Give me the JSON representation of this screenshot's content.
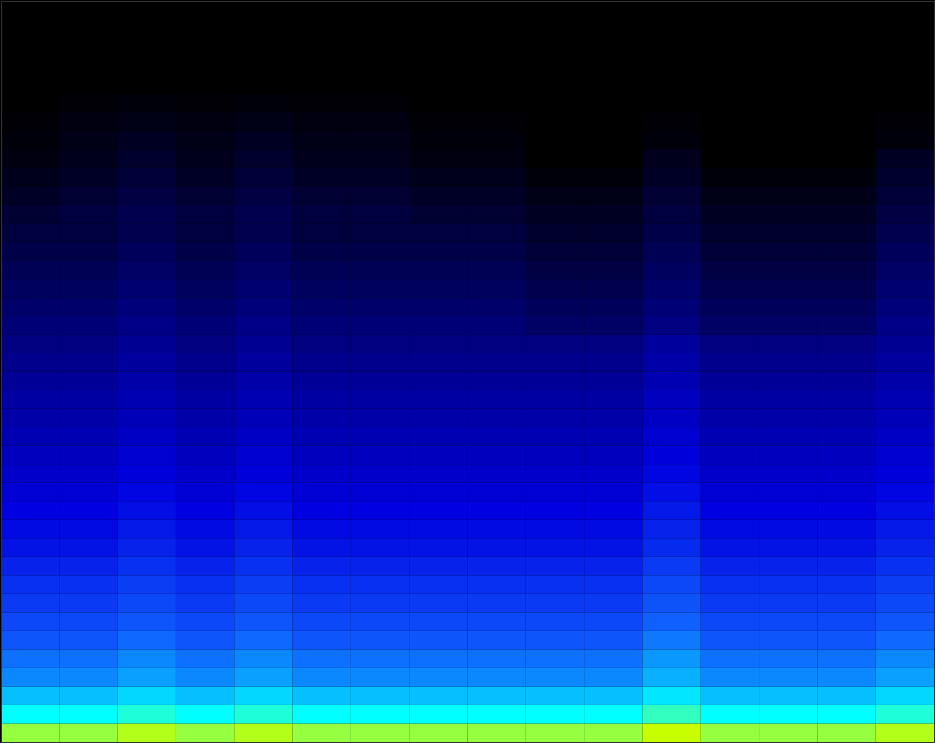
{
  "chart_data": {
    "type": "heatmap",
    "x": [
      0,
      1,
      2,
      3,
      4,
      5,
      6,
      7,
      8,
      9,
      10,
      11,
      12,
      13,
      14,
      15,
      16
    ],
    "y": [
      0,
      2.5,
      5,
      7.5,
      10,
      12.5,
      15,
      17.5,
      20,
      22.5,
      25,
      27.5,
      30,
      32.5,
      35,
      37.5,
      40,
      42.5,
      45,
      47.5,
      50,
      52.5,
      55,
      57.5,
      60,
      62.5,
      65,
      67.5,
      70,
      72.5,
      75,
      77.5,
      80,
      82.5,
      85,
      87.5,
      90,
      92.5,
      95,
      97.5,
      100
    ],
    "xlim": [
      0,
      16
    ],
    "ylim": [
      0,
      100
    ],
    "tick_labels": false,
    "values": [
      [
        95,
        95,
        98,
        95,
        98,
        95,
        95,
        95,
        95,
        95,
        95,
        100,
        95,
        95,
        95,
        98
      ],
      [
        80,
        80,
        83,
        80,
        83,
        80,
        80,
        80,
        80,
        80,
        80,
        85,
        80,
        80,
        80,
        83
      ],
      [
        72,
        72,
        75,
        72,
        75,
        72,
        72,
        72,
        72,
        72,
        72,
        77,
        72,
        72,
        72,
        75
      ],
      [
        65,
        65,
        68,
        65,
        68,
        65,
        65,
        65,
        65,
        65,
        65,
        70,
        65,
        65,
        65,
        68
      ],
      [
        62,
        62,
        65,
        62,
        65,
        62,
        62,
        62,
        62,
        62,
        62,
        67,
        62,
        62,
        62,
        65
      ],
      [
        58,
        58,
        61,
        58,
        61,
        58,
        58,
        58,
        58,
        58,
        58,
        63,
        58,
        58,
        58,
        61
      ],
      [
        55,
        55,
        58,
        55,
        58,
        55,
        55,
        55,
        55,
        55,
        55,
        60,
        55,
        55,
        55,
        58
      ],
      [
        52,
        52,
        55,
        52,
        55,
        52,
        52,
        52,
        52,
        52,
        52,
        57,
        52,
        52,
        52,
        55
      ],
      [
        50,
        50,
        53,
        50,
        53,
        50,
        50,
        50,
        50,
        50,
        50,
        55,
        50,
        50,
        50,
        53
      ],
      [
        47,
        47,
        50,
        47,
        50,
        47,
        47,
        47,
        47,
        47,
        47,
        52,
        47,
        47,
        47,
        50
      ],
      [
        44,
        44,
        47,
        44,
        47,
        44,
        44,
        44,
        44,
        44,
        44,
        49,
        44,
        44,
        44,
        47
      ],
      [
        42,
        42,
        45,
        42,
        45,
        42,
        42,
        42,
        42,
        42,
        42,
        47,
        42,
        42,
        42,
        45
      ],
      [
        40,
        40,
        43,
        40,
        43,
        40,
        40,
        40,
        40,
        40,
        40,
        45,
        40,
        40,
        40,
        43
      ],
      [
        38,
        38,
        41,
        38,
        41,
        38,
        38,
        38,
        38,
        38,
        38,
        43,
        38,
        38,
        38,
        41
      ],
      [
        36,
        36,
        39,
        36,
        39,
        36,
        36,
        36,
        36,
        36,
        36,
        41,
        36,
        36,
        36,
        39
      ],
      [
        34,
        34,
        37,
        34,
        37,
        34,
        34,
        34,
        34,
        34,
        34,
        39,
        34,
        34,
        34,
        37
      ],
      [
        32,
        32,
        35,
        32,
        35,
        32,
        32,
        32,
        32,
        32,
        32,
        37,
        32,
        32,
        32,
        35
      ],
      [
        30,
        30,
        33,
        30,
        33,
        30,
        30,
        30,
        30,
        30,
        30,
        35,
        30,
        30,
        30,
        33
      ],
      [
        29,
        29,
        32,
        29,
        32,
        29,
        29,
        29,
        29,
        29,
        29,
        34,
        29,
        29,
        29,
        32
      ],
      [
        27,
        27,
        30,
        27,
        30,
        27,
        27,
        27,
        27,
        27,
        27,
        32,
        27,
        27,
        27,
        30
      ],
      [
        25,
        25,
        28,
        25,
        28,
        25,
        25,
        25,
        25,
        25,
        25,
        30,
        25,
        25,
        25,
        28
      ],
      [
        23,
        23,
        26,
        23,
        26,
        23,
        23,
        23,
        23,
        23,
        23,
        28,
        23,
        23,
        23,
        26
      ],
      [
        21,
        21,
        24,
        21,
        24,
        21,
        21,
        21,
        21,
        18,
        18,
        23,
        18,
        18,
        18,
        24
      ],
      [
        19,
        19,
        22,
        19,
        22,
        19,
        19,
        19,
        19,
        16,
        16,
        21,
        16,
        16,
        16,
        22
      ],
      [
        17,
        17,
        20,
        17,
        20,
        17,
        17,
        17,
        17,
        14,
        14,
        19,
        14,
        14,
        14,
        20
      ],
      [
        15,
        15,
        18,
        15,
        18,
        15,
        15,
        15,
        15,
        12,
        12,
        17,
        12,
        12,
        12,
        18
      ],
      [
        13,
        13,
        16,
        13,
        16,
        13,
        13,
        13,
        13,
        10,
        10,
        15,
        10,
        10,
        10,
        16
      ],
      [
        11,
        11,
        14,
        11,
        14,
        11,
        11,
        11,
        11,
        8,
        8,
        13,
        8,
        8,
        8,
        14
      ],
      [
        9,
        11,
        14,
        11,
        14,
        11,
        11,
        9,
        9,
        6,
        6,
        11,
        6,
        6,
        6,
        12
      ],
      [
        7,
        9,
        12,
        9,
        12,
        9,
        9,
        7,
        7,
        4,
        4,
        9,
        4,
        4,
        4,
        10
      ],
      [
        5,
        7,
        10,
        7,
        10,
        7,
        7,
        5,
        5,
        2,
        2,
        7,
        2,
        2,
        2,
        8
      ],
      [
        3,
        5,
        8,
        5,
        8,
        5,
        5,
        3,
        3,
        0,
        0,
        5,
        0,
        0,
        0,
        6
      ],
      [
        2,
        4,
        6,
        4,
        6,
        4,
        4,
        2,
        2,
        0,
        0,
        2,
        0,
        0,
        0,
        2
      ],
      [
        1,
        3,
        4,
        3,
        4,
        3,
        3,
        1,
        1,
        0,
        0,
        1,
        0,
        0,
        0,
        1
      ],
      [
        0,
        1,
        2,
        1,
        2,
        1,
        1,
        0,
        0,
        0,
        0,
        0,
        0,
        0,
        0,
        0
      ],
      [
        0,
        0,
        0,
        0,
        0,
        0,
        0,
        0,
        0,
        0,
        0,
        0,
        0,
        0,
        0,
        0
      ],
      [
        0,
        0,
        0,
        0,
        0,
        0,
        0,
        0,
        0,
        0,
        0,
        0,
        0,
        0,
        0,
        0
      ],
      [
        0,
        0,
        0,
        0,
        0,
        0,
        0,
        0,
        0,
        0,
        0,
        0,
        0,
        0,
        0,
        0
      ],
      [
        0,
        0,
        0,
        0,
        0,
        0,
        0,
        0,
        0,
        0,
        0,
        0,
        0,
        0,
        0,
        0
      ],
      [
        0,
        0,
        0,
        0,
        0,
        0,
        0,
        0,
        0,
        0,
        0,
        0,
        0,
        0,
        0,
        0
      ]
    ]
  }
}
